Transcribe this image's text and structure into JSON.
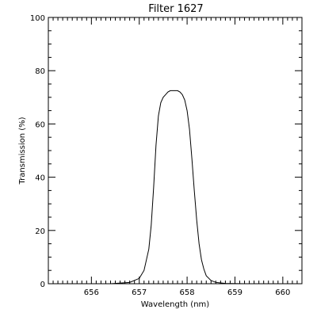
{
  "chart_data": {
    "type": "line",
    "title": "Filter 1627",
    "xlabel": "Wavelength (nm)",
    "ylabel": "Transmission (%)",
    "xlim": [
      655.1,
      660.4
    ],
    "ylim": [
      0,
      100
    ],
    "x_ticks": [
      656,
      657,
      658,
      659,
      660
    ],
    "y_ticks": [
      0,
      20,
      40,
      60,
      80,
      100
    ],
    "grid": false,
    "series": [
      {
        "x": [
          656.4,
          656.8,
          657.0,
          657.1,
          657.2,
          657.25,
          657.3,
          657.35,
          657.4,
          657.45,
          657.5,
          657.55,
          657.6,
          657.65,
          657.7,
          657.75,
          657.8,
          657.85,
          657.9,
          657.95,
          658.0,
          658.05,
          658.1,
          658.15,
          658.2,
          658.25,
          658.3,
          658.35,
          658.4,
          658.5,
          658.6,
          658.8,
          659.2
        ],
        "y": [
          0,
          0.5,
          2,
          5,
          13,
          22,
          36,
          52,
          63,
          68,
          70,
          71,
          72,
          72.5,
          72.5,
          72.5,
          72.5,
          72,
          71,
          69,
          65,
          58,
          47,
          35,
          24,
          15,
          9,
          5.5,
          3,
          1.2,
          0.5,
          0.1,
          0
        ]
      }
    ]
  }
}
